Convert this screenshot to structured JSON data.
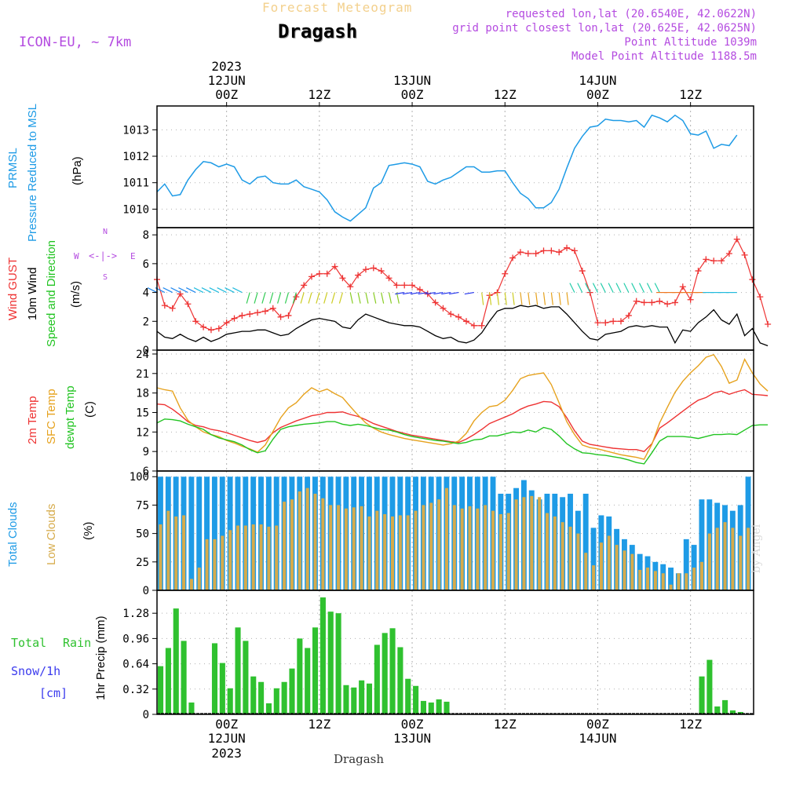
{
  "header": {
    "title_top": "Forecast Meteogram",
    "location": "Dragash",
    "model": "ICON-EU, ~ 7km",
    "requested": "requested lon,lat (20.6540E, 42.0622N)",
    "grid_point": "grid point closest lon,lat (20.625E, 42.0625N)",
    "point_alt": "Point Altitude 1039m",
    "model_alt": "Model Point Altitude 1188.5m",
    "footer_location": "Dragash",
    "watermark": "by Angel",
    "compass": {
      "n": "N",
      "s": "S",
      "w": "W",
      "e": "E",
      "arrows": "<-|->"
    }
  },
  "time_axis": {
    "top": [
      {
        "year": "2023",
        "date": "12JUN",
        "hour": "00Z"
      },
      {
        "year": "",
        "date": "",
        "hour": "12Z"
      },
      {
        "year": "",
        "date": "13JUN",
        "hour": "00Z"
      },
      {
        "year": "",
        "date": "",
        "hour": "12Z"
      },
      {
        "year": "",
        "date": "14JUN",
        "hour": "00Z"
      },
      {
        "year": "",
        "date": "",
        "hour": "12Z"
      }
    ],
    "bottom": [
      {
        "hour": "00Z",
        "date": "12JUN",
        "year": "2023"
      },
      {
        "hour": "12Z",
        "date": "",
        "year": ""
      },
      {
        "hour": "00Z",
        "date": "13JUN",
        "year": ""
      },
      {
        "hour": "12Z",
        "date": "",
        "year": ""
      },
      {
        "hour": "00Z",
        "date": "14JUN",
        "year": ""
      },
      {
        "hour": "12Z",
        "date": "",
        "year": ""
      }
    ]
  },
  "panel_labels": {
    "pressure": {
      "l1": "PRMSL",
      "l2": "Pressure Reduced to MSL",
      "unit": "(hPa)"
    },
    "wind": {
      "l1": "Wind GUST",
      "l2": "10m Wind",
      "l3": "Speed and Direction",
      "unit": "(m/s)"
    },
    "temp": {
      "l1": "2m Temp",
      "l2": "SFC Temp",
      "l3": "dewpt Temp",
      "unit": "(C)"
    },
    "clouds": {
      "l1": "Total Clouds",
      "l2": "Low Clouds",
      "unit": "(%)"
    },
    "precip": {
      "l1": "Total",
      "l2": "Rain",
      "l3": "Snow/1h",
      "l4": "[cm]",
      "unit": "1hr Precip (mm)"
    }
  },
  "colors": {
    "pressure": "#1e9be6",
    "gust": "#ee3333",
    "wind": "#000000",
    "temp2m": "#ee3333",
    "sfc": "#e6a21e",
    "dewpt": "#22c422",
    "total_clouds": "#1e9be6",
    "low_clouds": "#d6ab4b",
    "rain": "#2fc12f",
    "title_top": "#f3d08c",
    "purple": "#b44be0",
    "grid": "#b0b0b0"
  },
  "chart_data": [
    {
      "type": "line",
      "name": "pressure",
      "x_hours_from_12jun00z": {
        "start": -9,
        "step": 1
      },
      "ylim": [
        1009.3,
        1013.9
      ],
      "yticks": [
        1010,
        1011,
        1012,
        1013
      ],
      "series": [
        {
          "name": "PRMSL",
          "values": [
            1010.65,
            1010.95,
            1010.5,
            1010.55,
            1011.1,
            1011.5,
            1011.8,
            1011.75,
            1011.6,
            1011.7,
            1011.6,
            1011.1,
            1010.95,
            1011.2,
            1011.25,
            1011.0,
            1010.95,
            1010.95,
            1011.1,
            1010.85,
            1010.75,
            1010.65,
            1010.35,
            1009.9,
            1009.7,
            1009.55,
            1009.8,
            1010.05,
            1010.8,
            1011.0,
            1011.65,
            1011.7,
            1011.75,
            1011.7,
            1011.6,
            1011.05,
            1010.95,
            1011.1,
            1011.2,
            1011.4,
            1011.6,
            1011.6,
            1011.4,
            1011.4,
            1011.45,
            1011.45,
            1011.0,
            1010.6,
            1010.4,
            1010.05,
            1010.05,
            1010.25,
            1010.75,
            1011.55,
            1012.3,
            1012.75,
            1013.1,
            1013.15,
            1013.4,
            1013.35,
            1013.35,
            1013.3,
            1013.35,
            1013.1,
            1013.55,
            1013.45,
            1013.3,
            1013.55,
            1013.35,
            1012.85,
            1012.8,
            1012.95,
            1012.3,
            1012.45,
            1012.4,
            1012.8
          ]
        }
      ]
    },
    {
      "type": "line",
      "name": "wind",
      "x_hours_from_12jun00z": {
        "start": -9,
        "step": 1
      },
      "ylim": [
        0,
        8.5
      ],
      "yticks": [
        0,
        2,
        4,
        6,
        8
      ],
      "series": [
        {
          "name": "Wind GUST",
          "values": [
            4.9,
            3.1,
            2.9,
            3.9,
            3.2,
            2.0,
            1.6,
            1.4,
            1.5,
            1.9,
            2.2,
            2.4,
            2.5,
            2.6,
            2.7,
            2.9,
            2.3,
            2.4,
            3.7,
            4.5,
            5.1,
            5.3,
            5.3,
            5.8,
            5.0,
            4.4,
            5.2,
            5.6,
            5.7,
            5.5,
            5.0,
            4.5,
            4.5,
            4.5,
            4.2,
            3.9,
            3.3,
            2.9,
            2.5,
            2.3,
            2.0,
            1.7,
            1.7,
            3.8,
            4.0,
            5.3,
            6.4,
            6.8,
            6.7,
            6.7,
            6.9,
            6.9,
            6.8,
            7.1,
            6.9,
            5.5,
            4.0,
            1.9,
            1.9,
            2.0,
            2.0,
            2.4,
            3.4,
            3.3,
            3.3,
            3.4,
            3.2,
            3.3,
            4.4,
            3.5,
            5.5,
            6.3,
            6.2,
            6.2,
            6.7,
            7.7,
            6.6,
            4.9,
            3.7,
            1.8
          ]
        },
        {
          "name": "10m Wind",
          "values": [
            1.3,
            0.9,
            0.8,
            1.1,
            0.8,
            0.6,
            0.9,
            0.6,
            0.8,
            1.1,
            1.2,
            1.3,
            1.3,
            1.4,
            1.4,
            1.2,
            1.0,
            1.1,
            1.5,
            1.8,
            2.1,
            2.2,
            2.1,
            2.0,
            1.6,
            1.5,
            2.1,
            2.5,
            2.3,
            2.1,
            1.9,
            1.8,
            1.7,
            1.7,
            1.6,
            1.3,
            1.0,
            0.8,
            0.9,
            0.6,
            0.5,
            0.7,
            1.2,
            2.0,
            2.7,
            2.9,
            2.9,
            3.1,
            3.0,
            3.1,
            2.9,
            3.0,
            3.0,
            2.5,
            1.9,
            1.3,
            0.8,
            0.7,
            1.1,
            1.2,
            1.3,
            1.6,
            1.7,
            1.6,
            1.7,
            1.6,
            1.6,
            0.5,
            1.4,
            1.3,
            1.9,
            2.3,
            2.8,
            2.1,
            1.8,
            2.5,
            1.0,
            1.5,
            0.5,
            0.3
          ]
        }
      ]
    },
    {
      "type": "line",
      "name": "temperature",
      "x_hours_from_12jun00z": {
        "start": -9,
        "step": 1
      },
      "ylim": [
        6,
        24.6
      ],
      "yticks": [
        6,
        9,
        12,
        15,
        18,
        21,
        24
      ],
      "series": [
        {
          "name": "2m Temp",
          "values": [
            16.3,
            16.2,
            15.5,
            14.6,
            13.6,
            13.0,
            12.8,
            12.4,
            12.2,
            11.9,
            11.5,
            11.1,
            10.7,
            10.4,
            10.7,
            11.9,
            12.7,
            13.2,
            13.7,
            14.1,
            14.5,
            14.7,
            15.0,
            15.0,
            15.1,
            14.7,
            14.4,
            13.9,
            13.3,
            12.9,
            12.5,
            12.1,
            11.8,
            11.5,
            11.3,
            11.1,
            10.9,
            10.7,
            10.5,
            10.4,
            10.9,
            11.6,
            12.4,
            13.3,
            13.8,
            14.3,
            14.8,
            15.5,
            16.0,
            16.3,
            16.7,
            16.6,
            15.9,
            14.2,
            12.2,
            10.6,
            10.1,
            9.9,
            9.7,
            9.5,
            9.4,
            9.3,
            9.3,
            9.0,
            10.2,
            12.6,
            13.4,
            14.3,
            15.2,
            16.1,
            16.9,
            17.3,
            18.0,
            18.3,
            17.8,
            18.2,
            18.5,
            17.8,
            17.7,
            17.6
          ]
        },
        {
          "name": "SFC Temp",
          "values": [
            18.8,
            18.5,
            18.3,
            15.7,
            13.8,
            12.8,
            12.0,
            11.6,
            11.3,
            10.7,
            10.3,
            9.8,
            9.4,
            8.9,
            10.0,
            12.1,
            14.2,
            15.7,
            16.5,
            17.8,
            18.8,
            18.2,
            18.6,
            17.9,
            17.3,
            15.9,
            14.6,
            13.4,
            12.6,
            12.0,
            11.6,
            11.3,
            11.0,
            10.8,
            10.6,
            10.4,
            10.2,
            10.0,
            10.2,
            10.6,
            11.8,
            13.7,
            15.0,
            15.9,
            16.1,
            16.9,
            18.4,
            20.2,
            20.7,
            20.9,
            21.1,
            19.3,
            16.5,
            13.6,
            11.6,
            10.0,
            9.6,
            9.4,
            9.1,
            8.8,
            8.5,
            8.3,
            8.1,
            7.8,
            10.1,
            13.4,
            15.8,
            18.1,
            19.8,
            21.1,
            22.2,
            23.5,
            23.9,
            22.1,
            19.5,
            20.0,
            23.2,
            21.1,
            19.4,
            18.3
          ]
        },
        {
          "name": "dewpt Temp",
          "values": [
            13.4,
            14.0,
            13.9,
            13.7,
            13.2,
            12.8,
            12.4,
            11.6,
            11.1,
            10.8,
            10.5,
            10.0,
            9.3,
            8.8,
            9.1,
            10.9,
            12.4,
            12.8,
            13.0,
            13.2,
            13.3,
            13.4,
            13.6,
            13.6,
            13.2,
            13.0,
            13.2,
            13.0,
            12.7,
            12.4,
            12.3,
            12.0,
            11.6,
            11.3,
            11.1,
            10.9,
            10.7,
            10.6,
            10.4,
            10.2,
            10.4,
            10.8,
            10.9,
            11.4,
            11.4,
            11.7,
            12.0,
            11.9,
            12.3,
            12.0,
            12.7,
            12.4,
            11.4,
            10.2,
            9.4,
            8.8,
            8.7,
            8.5,
            8.4,
            8.2,
            8.0,
            7.7,
            7.3,
            7.1,
            8.8,
            10.6,
            11.3,
            11.3,
            11.3,
            11.2,
            11.0,
            11.3,
            11.6,
            11.6,
            11.7,
            11.6,
            12.3,
            13.0,
            13.1,
            13.1
          ]
        }
      ]
    },
    {
      "type": "bar",
      "name": "clouds",
      "x_hours_from_12jun00z": {
        "start": -9,
        "step": 1
      },
      "ylim": [
        0,
        105
      ],
      "yticks": [
        0,
        25,
        50,
        75,
        100
      ],
      "series": [
        {
          "name": "Total Clouds",
          "values": [
            100,
            100,
            100,
            100,
            100,
            100,
            100,
            100,
            100,
            100,
            100,
            100,
            100,
            100,
            100,
            100,
            100,
            100,
            100,
            100,
            100,
            100,
            100,
            100,
            100,
            100,
            100,
            100,
            100,
            100,
            100,
            100,
            100,
            100,
            100,
            100,
            100,
            100,
            100,
            100,
            100,
            100,
            100,
            100,
            85,
            85,
            90,
            97,
            88,
            80,
            85,
            85,
            82,
            85,
            70,
            85,
            55,
            66,
            65,
            54,
            45,
            40,
            32,
            30,
            25,
            23,
            20,
            15,
            45,
            40,
            80,
            80,
            77,
            75,
            70,
            75,
            100,
            90,
            100,
            95,
            92,
            85
          ]
        },
        {
          "name": "Low Clouds",
          "values": [
            58,
            70,
            65,
            66,
            10,
            20,
            45,
            45,
            48,
            53,
            57,
            57,
            58,
            58,
            56,
            57,
            78,
            80,
            87,
            90,
            85,
            81,
            75,
            75,
            72,
            73,
            74,
            65,
            70,
            67,
            65,
            66,
            66,
            70,
            75,
            77,
            80,
            90,
            75,
            72,
            74,
            72,
            75,
            70,
            67,
            68,
            80,
            82,
            83,
            82,
            68,
            65,
            60,
            56,
            50,
            33,
            22,
            42,
            48,
            40,
            35,
            32,
            18,
            20,
            17,
            15,
            5,
            15,
            15,
            20,
            25,
            50,
            55,
            60,
            55,
            48,
            55,
            55,
            48,
            53,
            50,
            26
          ]
        }
      ]
    },
    {
      "type": "bar",
      "name": "precipitation",
      "x_hours_from_12jun00z": {
        "start": -9,
        "step": 1
      },
      "ylim": [
        0,
        1.57
      ],
      "yticks": [
        0,
        0.32,
        0.64,
        0.96,
        1.28
      ],
      "series": [
        {
          "name": "Total Rain",
          "values": [
            0.61,
            0.84,
            1.34,
            0.93,
            0.15,
            0,
            0,
            0.9,
            0.65,
            0.33,
            1.1,
            0.93,
            0.48,
            0.41,
            0.14,
            0.33,
            0.41,
            0.58,
            0.96,
            0.84,
            1.1,
            1.48,
            1.3,
            1.28,
            0.37,
            0.34,
            0.43,
            0.39,
            0.88,
            1.03,
            1.09,
            0.85,
            0.45,
            0.36,
            0.17,
            0.15,
            0.19,
            0.16
          ]
        },
        {
          "name": "Total Rain (14JUN)",
          "values": [
            0.48,
            0.69,
            0.1,
            0.18,
            0.05,
            0.03
          ]
        }
      ]
    }
  ]
}
